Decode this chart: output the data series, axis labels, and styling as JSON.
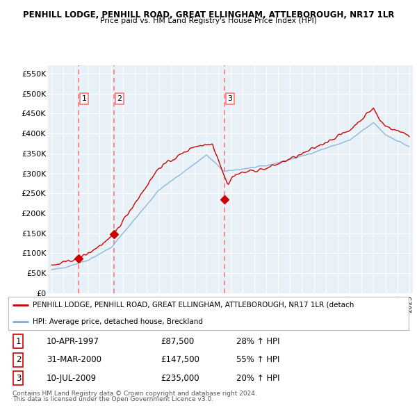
{
  "title1": "PENHILL LODGE, PENHILL ROAD, GREAT ELLINGHAM, ATTLEBOROUGH, NR17 1LR",
  "title2": "Price paid vs. HM Land Registry's House Price Index (HPI)",
  "ylim": [
    0,
    570000
  ],
  "yticks": [
    0,
    50000,
    100000,
    150000,
    200000,
    250000,
    300000,
    350000,
    400000,
    450000,
    500000,
    550000
  ],
  "ytick_labels": [
    "£0",
    "£50K",
    "£100K",
    "£150K",
    "£200K",
    "£250K",
    "£300K",
    "£350K",
    "£400K",
    "£450K",
    "£500K",
    "£550K"
  ],
  "xlim_start": 1994.7,
  "xlim_end": 2025.3,
  "xtick_start": 1995,
  "xtick_end": 2025,
  "bg_color": "#e8f0f8",
  "grid_color": "#ffffff",
  "red_line_color": "#cc0000",
  "blue_line_color": "#7aafd4",
  "dashed_line_color": "#ff7777",
  "transaction_marker_color": "#cc0000",
  "purchases": [
    {
      "label": 1,
      "date_year": 1997.28,
      "price": 87500
    },
    {
      "label": 2,
      "date_year": 2000.25,
      "price": 147500
    },
    {
      "label": 3,
      "date_year": 2009.52,
      "price": 235000
    }
  ],
  "table_rows": [
    {
      "num": 1,
      "date": "10-APR-1997",
      "price": "£87,500",
      "hpi": "28% ↑ HPI"
    },
    {
      "num": 2,
      "date": "31-MAR-2000",
      "price": "£147,500",
      "hpi": "55% ↑ HPI"
    },
    {
      "num": 3,
      "date": "10-JUL-2009",
      "price": "£235,000",
      "hpi": "20% ↑ HPI"
    }
  ],
  "legend_line1": "PENHILL LODGE, PENHILL ROAD, GREAT ELLINGHAM, ATTLEBOROUGH, NR17 1LR (detach",
  "legend_line2": "HPI: Average price, detached house, Breckland",
  "footer1": "Contains HM Land Registry data © Crown copyright and database right 2024.",
  "footer2": "This data is licensed under the Open Government Licence v3.0."
}
